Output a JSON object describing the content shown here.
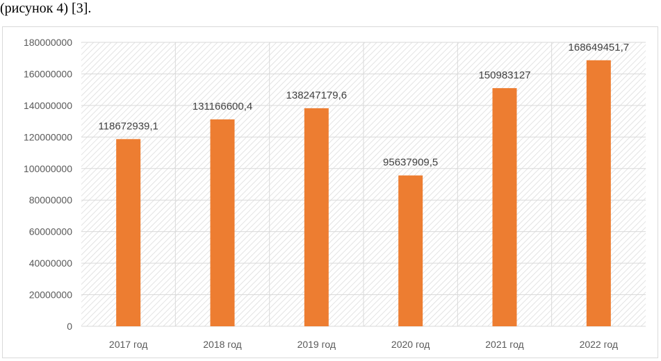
{
  "caption": "(рисунок 4) [3].",
  "chart_data": {
    "type": "bar",
    "categories": [
      "2017 год",
      "2018 год",
      "2019 год",
      "2020 год",
      "2021 год",
      "2022 год"
    ],
    "values": [
      118672939.1,
      131166600.4,
      138247179.6,
      95637909.5,
      150983127,
      168649451.7
    ],
    "data_labels": [
      "118672939,1",
      "131166600,4",
      "138247179,6",
      "95637909,5",
      "150983127",
      "168649451,7"
    ],
    "yticks": [
      0,
      20000000,
      40000000,
      60000000,
      80000000,
      100000000,
      120000000,
      140000000,
      160000000,
      180000000
    ],
    "ylim": [
      0,
      180000000
    ],
    "title": "",
    "xlabel": "",
    "ylabel": "",
    "bar_color": "#ed7d31",
    "grid": true,
    "legend": "none"
  }
}
